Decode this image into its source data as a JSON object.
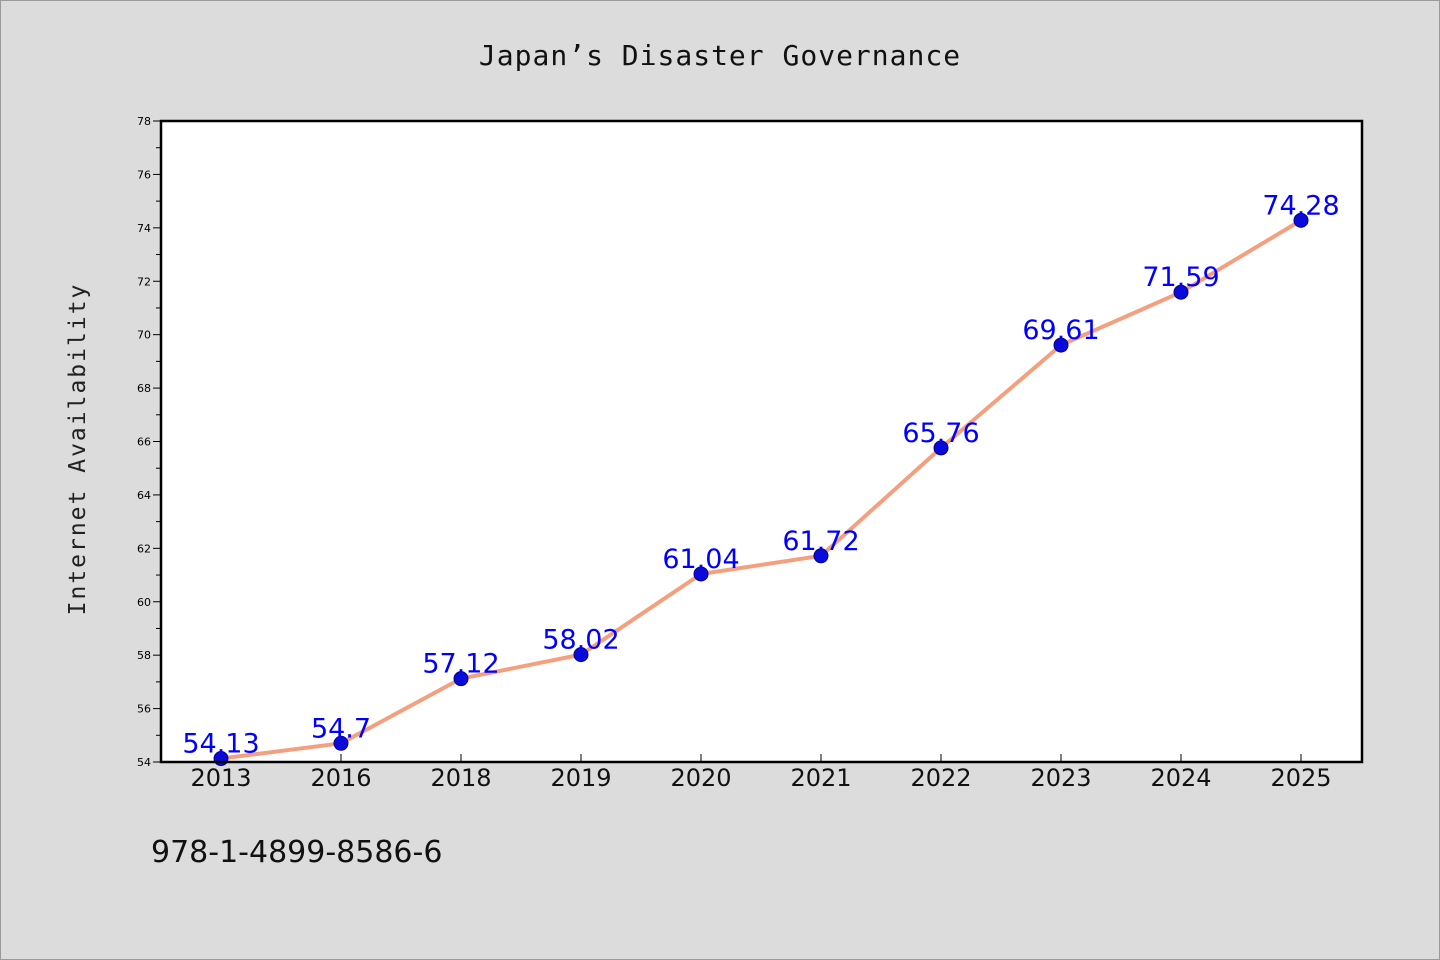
{
  "chart_data": {
    "type": "line",
    "title": "Japan’s Disaster Governance",
    "xlabel": "",
    "ylabel": "Internet Availability",
    "categories": [
      "2013",
      "2016",
      "2018",
      "2019",
      "2020",
      "2021",
      "2022",
      "2023",
      "2024",
      "2025"
    ],
    "series": [
      {
        "values": [
          54.13,
          54.7,
          57.12,
          58.02,
          61.04,
          61.72,
          65.76,
          69.61,
          71.59,
          74.28
        ]
      }
    ],
    "data_labels": [
      "54.13",
      "54.7",
      "57.12",
      "58.02",
      "61.04",
      "61.72",
      "65.76",
      "69.61",
      "71.59",
      "74.28"
    ],
    "ylim": [
      54,
      78
    ],
    "yticks": [
      "54",
      "56",
      "58",
      "60",
      "62",
      "64",
      "66",
      "68",
      "70",
      "72",
      "74",
      "76",
      "78"
    ],
    "grid": false,
    "legend": "none",
    "colors": {
      "line": "#f4a07f",
      "marker": "#0a0adb",
      "label": "#0000ff",
      "background": "#dcdcdc",
      "plot_area": "#ffffff"
    }
  },
  "footer": {
    "code": "978-1-4899-8586-6"
  }
}
